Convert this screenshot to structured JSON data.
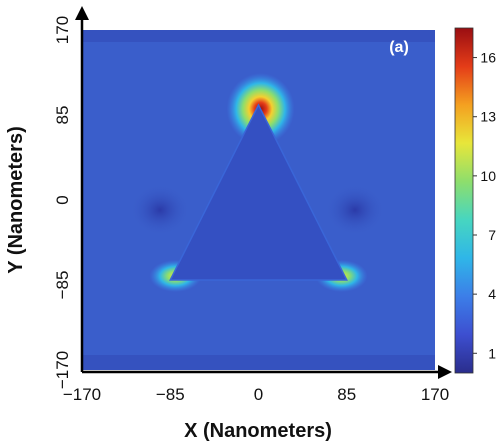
{
  "chart_data": {
    "type": "heatmap",
    "title": "",
    "panel_label": "(a)",
    "xlabel": "X (Nanometers)",
    "ylabel": "Y (Nanometers)",
    "xlim": [
      -170,
      170
    ],
    "ylim": [
      -170,
      170
    ],
    "x_ticks": [
      "−170",
      "−85",
      "0",
      "85",
      "170"
    ],
    "x_tick_values": [
      -170,
      -85,
      0,
      85,
      170
    ],
    "y_ticks": [
      "170",
      "85",
      "0",
      "−85",
      "−170"
    ],
    "y_tick_values": [
      170,
      85,
      0,
      -85,
      -170
    ],
    "colorbar": {
      "range": [
        0,
        17.5
      ],
      "ticks": [
        "1",
        "4",
        "7",
        "10",
        "13",
        "16"
      ],
      "tick_values": [
        1,
        4,
        7,
        10,
        13,
        16
      ],
      "colors": [
        "#2a2d8c",
        "#3d4fd0",
        "#3c7ee8",
        "#2fb6e8",
        "#47d6c0",
        "#8ede6c",
        "#e8e63a",
        "#f4a020",
        "#e43c18",
        "#9a0e12"
      ]
    },
    "field": {
      "background_value": 3.0,
      "triangle_value": 2.5,
      "triangle_vertices": [
        [
          0,
          95
        ],
        [
          -85,
          -80
        ],
        [
          85,
          -80
        ]
      ],
      "hotspots": [
        {
          "x": 2,
          "y": 93,
          "peak": 17
        },
        {
          "x": -80,
          "y": -76,
          "peak": 11
        },
        {
          "x": 80,
          "y": -76,
          "peak": 11
        }
      ]
    }
  }
}
